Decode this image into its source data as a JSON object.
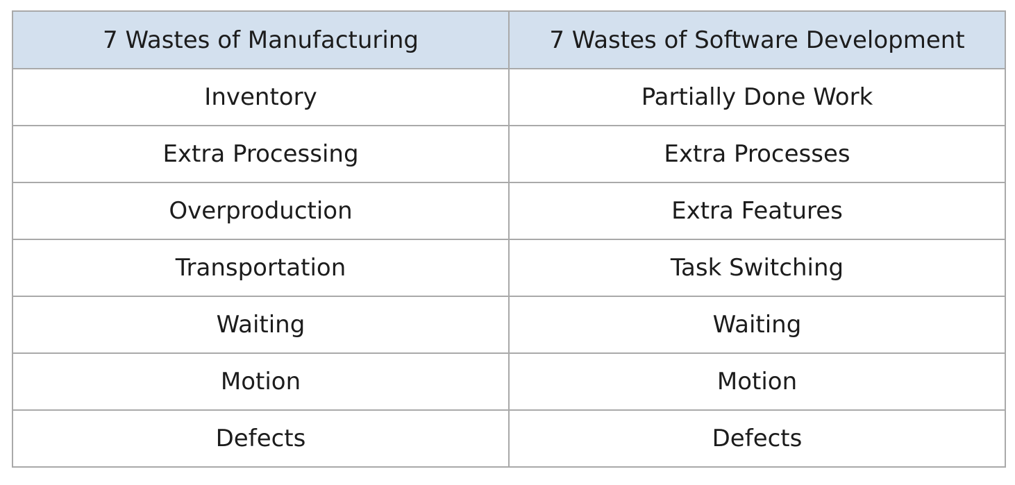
{
  "colors": {
    "header_background": "#d3e0ee",
    "border": "#a9a9a9",
    "text": "#1c1c1c"
  },
  "table": {
    "headers": [
      "7 Wastes of Manufacturing",
      "7 Wastes of Software Development"
    ],
    "rows": [
      [
        "Inventory",
        "Partially Done Work"
      ],
      [
        "Extra Processing",
        "Extra Processes"
      ],
      [
        "Overproduction",
        "Extra Features"
      ],
      [
        "Transportation",
        "Task Switching"
      ],
      [
        "Waiting",
        "Waiting"
      ],
      [
        "Motion",
        "Motion"
      ],
      [
        "Defects",
        "Defects"
      ]
    ]
  }
}
